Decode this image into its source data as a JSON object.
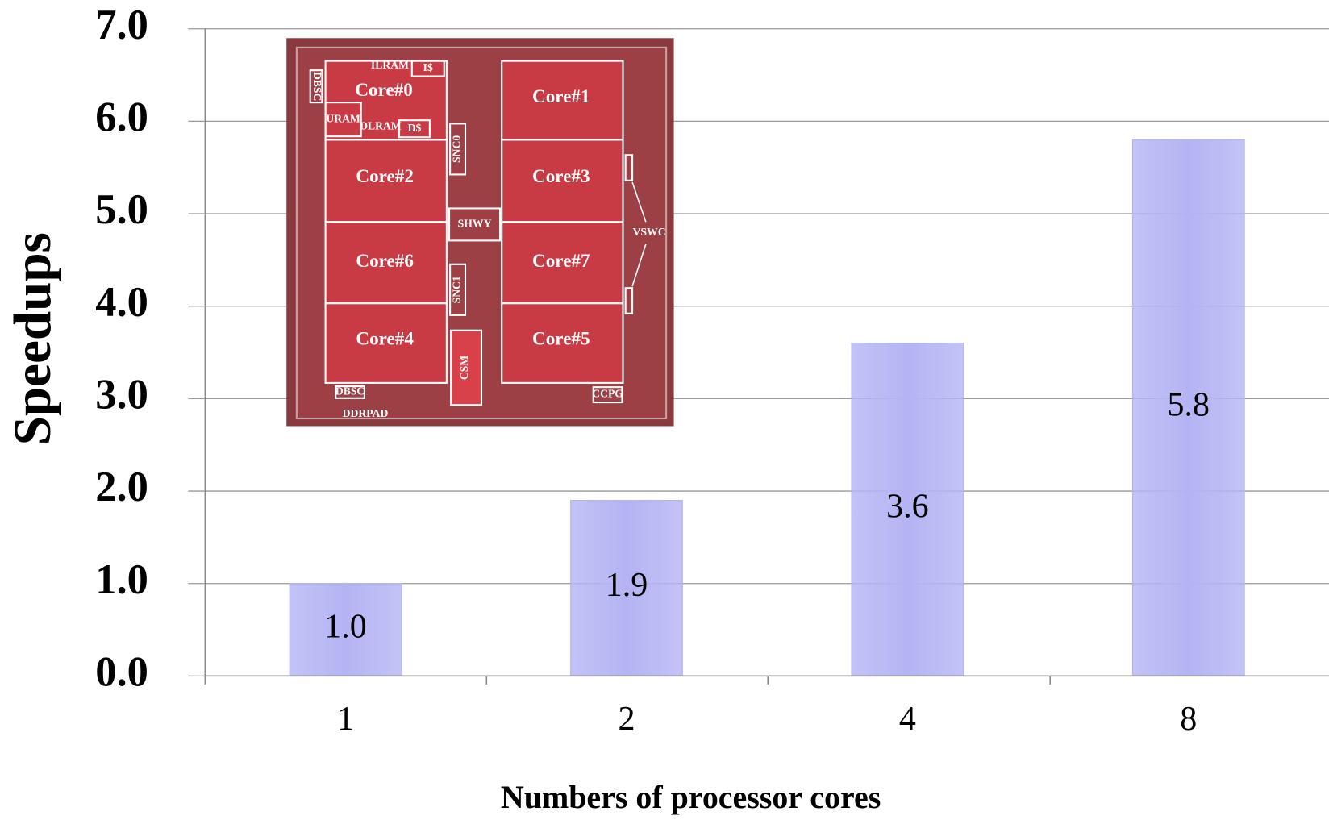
{
  "chart_data": {
    "type": "bar",
    "categories": [
      "1",
      "2",
      "4",
      "8"
    ],
    "values": [
      1.0,
      1.9,
      3.6,
      5.8
    ],
    "value_labels": [
      "1.0",
      "1.9",
      "3.6",
      "5.8"
    ],
    "color": "#b4b4f4",
    "ylim": [
      0,
      7
    ],
    "yticks": [
      {
        "value": 0,
        "label": "0.0"
      },
      {
        "value": 1,
        "label": "1.0"
      },
      {
        "value": 2,
        "label": "2.0"
      },
      {
        "value": 3,
        "label": "3.0"
      },
      {
        "value": 4,
        "label": "4.0"
      },
      {
        "value": 5,
        "label": "5.0"
      },
      {
        "value": 6,
        "label": "6.0"
      },
      {
        "value": 7,
        "label": "7.0"
      }
    ],
    "grid": true,
    "y_label": "Speedups",
    "x_label": "Numbers of processor cores",
    "inset_labels": [
      "Core#0",
      "Core#1",
      "Core#2",
      "Core#3",
      "Core#6",
      "Core#7",
      "Core#4",
      "Core#5",
      "SNC0",
      "SHWY",
      "SNC1",
      "CSM",
      "VSWC",
      "DDRPAD",
      "DBSC",
      "CCPG",
      "URAM",
      "DLRAM",
      "D$",
      "ILRAM",
      "I$",
      "DBSC"
    ]
  }
}
